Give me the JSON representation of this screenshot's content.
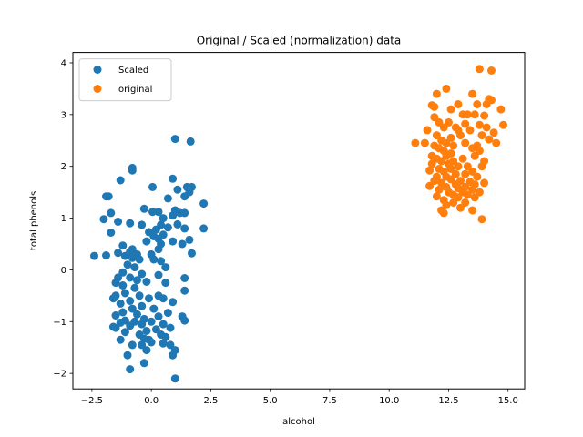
{
  "chart_data": {
    "type": "scatter",
    "title": "Original / Scaled (normalization) data",
    "xlabel": "alcohol",
    "ylabel": "total phenols",
    "xlim": [
      -3.3,
      15.7
    ],
    "ylim": [
      -2.3,
      4.2
    ],
    "xticks": [
      -2.5,
      0.0,
      2.5,
      5.0,
      7.5,
      10.0,
      12.5,
      15.0
    ],
    "xtick_labels": [
      "−2.5",
      "0.0",
      "2.5",
      "5.0",
      "7.5",
      "10.0",
      "12.5",
      "15.0"
    ],
    "yticks": [
      -2,
      -1,
      0,
      1,
      2,
      3,
      4
    ],
    "ytick_labels": [
      "−2",
      "−1",
      "0",
      "1",
      "2",
      "3",
      "4"
    ],
    "grid": false,
    "legend_position": "top-left",
    "series": [
      {
        "name": "Scaled",
        "color": "#1f77b4",
        "points": [
          [
            1.0,
            2.53
          ],
          [
            1.65,
            2.48
          ],
          [
            -0.8,
            1.97
          ],
          [
            -0.8,
            1.92
          ],
          [
            0.9,
            1.76
          ],
          [
            -1.3,
            1.73
          ],
          [
            1.5,
            1.6
          ],
          [
            1.7,
            1.6
          ],
          [
            0.05,
            1.6
          ],
          [
            1.6,
            1.5
          ],
          [
            1.1,
            1.55
          ],
          [
            1.4,
            1.42
          ],
          [
            -1.9,
            1.42
          ],
          [
            -1.8,
            1.42
          ],
          [
            0.7,
            1.38
          ],
          [
            2.2,
            1.28
          ],
          [
            -0.3,
            1.18
          ],
          [
            1.0,
            1.15
          ],
          [
            0.3,
            1.12
          ],
          [
            0.05,
            1.12
          ],
          [
            -1.7,
            1.1
          ],
          [
            1.2,
            1.1
          ],
          [
            1.4,
            1.1
          ],
          [
            0.5,
            1.0
          ],
          [
            0.9,
            1.05
          ],
          [
            -2.0,
            0.98
          ],
          [
            -1.4,
            0.93
          ],
          [
            -0.9,
            0.9
          ],
          [
            -0.4,
            0.87
          ],
          [
            0.4,
            0.87
          ],
          [
            1.1,
            0.88
          ],
          [
            0.7,
            0.82
          ],
          [
            2.2,
            0.8
          ],
          [
            1.4,
            0.8
          ],
          [
            0.2,
            0.78
          ],
          [
            -0.1,
            0.73
          ],
          [
            -1.7,
            0.72
          ],
          [
            0.5,
            0.68
          ],
          [
            0.1,
            0.65
          ],
          [
            0.3,
            0.6
          ],
          [
            1.6,
            0.58
          ],
          [
            0.9,
            0.55
          ],
          [
            -0.2,
            0.55
          ],
          [
            0.4,
            0.5
          ],
          [
            1.3,
            0.5
          ],
          [
            -1.2,
            0.47
          ],
          [
            -0.8,
            0.4
          ],
          [
            0.3,
            0.4
          ],
          [
            -0.9,
            0.35
          ],
          [
            -1.4,
            0.33
          ],
          [
            0.0,
            0.3
          ],
          [
            1.7,
            0.32
          ],
          [
            -0.6,
            0.3
          ],
          [
            -1.1,
            0.27
          ],
          [
            -2.4,
            0.27
          ],
          [
            -1.9,
            0.28
          ],
          [
            0.1,
            0.2
          ],
          [
            -0.8,
            0.23
          ],
          [
            -0.5,
            0.2
          ],
          [
            0.4,
            0.17
          ],
          [
            -1.0,
            0.1
          ],
          [
            0.6,
            0.05
          ],
          [
            -0.7,
            0.05
          ],
          [
            -1.2,
            -0.05
          ],
          [
            -0.4,
            -0.08
          ],
          [
            0.3,
            -0.1
          ],
          [
            -0.9,
            -0.15
          ],
          [
            -1.4,
            -0.15
          ],
          [
            -0.6,
            -0.2
          ],
          [
            1.4,
            -0.16
          ],
          [
            -1.5,
            -0.25
          ],
          [
            -0.2,
            -0.23
          ],
          [
            0.6,
            -0.25
          ],
          [
            -1.2,
            -0.3
          ],
          [
            -0.7,
            -0.35
          ],
          [
            1.4,
            -0.4
          ],
          [
            -1.1,
            -0.45
          ],
          [
            -0.5,
            -0.5
          ],
          [
            -1.5,
            -0.5
          ],
          [
            -1.6,
            -0.55
          ],
          [
            0.3,
            -0.5
          ],
          [
            0.5,
            -0.55
          ],
          [
            -0.1,
            -0.55
          ],
          [
            -0.9,
            -0.6
          ],
          [
            -1.3,
            -0.65
          ],
          [
            0.9,
            -0.62
          ],
          [
            -0.4,
            -0.7
          ],
          [
            -0.8,
            -0.75
          ],
          [
            0.1,
            -0.75
          ],
          [
            -1.2,
            -0.82
          ],
          [
            0.7,
            -0.83
          ],
          [
            -0.6,
            -0.86
          ],
          [
            -1.5,
            -0.88
          ],
          [
            1.3,
            -0.9
          ],
          [
            0.3,
            -0.9
          ],
          [
            -0.3,
            -0.95
          ],
          [
            -1.1,
            -0.98
          ],
          [
            -0.7,
            -1.0
          ],
          [
            0.0,
            -1.0
          ],
          [
            1.4,
            -0.98
          ],
          [
            -1.3,
            -1.02
          ],
          [
            -0.4,
            -1.05
          ],
          [
            0.5,
            -1.05
          ],
          [
            -0.9,
            -1.08
          ],
          [
            -1.6,
            -1.1
          ],
          [
            -1.5,
            -1.12
          ],
          [
            0.8,
            -1.12
          ],
          [
            0.2,
            -1.15
          ],
          [
            -0.2,
            -1.18
          ],
          [
            -1.1,
            -1.2
          ],
          [
            -0.5,
            -1.25
          ],
          [
            0.4,
            -1.25
          ],
          [
            -0.3,
            -1.33
          ],
          [
            -0.1,
            -1.35
          ],
          [
            0.6,
            -1.3
          ],
          [
            -1.3,
            -1.35
          ],
          [
            0.0,
            -1.4
          ],
          [
            -0.4,
            -1.45
          ],
          [
            0.5,
            -1.42
          ],
          [
            -0.8,
            -1.45
          ],
          [
            0.8,
            -1.45
          ],
          [
            -0.2,
            -1.55
          ],
          [
            1.0,
            -1.55
          ],
          [
            -1.0,
            -1.65
          ],
          [
            0.9,
            -1.65
          ],
          [
            -0.3,
            -1.8
          ],
          [
            -0.9,
            -1.92
          ],
          [
            1.0,
            -2.1
          ]
        ]
      },
      {
        "name": "original",
        "color": "#ff7f0e",
        "points": [
          [
            13.8,
            3.88
          ],
          [
            14.3,
            3.85
          ],
          [
            12.4,
            3.5
          ],
          [
            12.0,
            3.4
          ],
          [
            13.5,
            3.4
          ],
          [
            14.2,
            3.3
          ],
          [
            14.3,
            3.28
          ],
          [
            14.1,
            3.2
          ],
          [
            12.9,
            3.2
          ],
          [
            13.7,
            3.2
          ],
          [
            11.8,
            3.18
          ],
          [
            11.9,
            3.15
          ],
          [
            14.7,
            3.1
          ],
          [
            12.6,
            3.1
          ],
          [
            13.3,
            3.0
          ],
          [
            13.6,
            3.0
          ],
          [
            13.1,
            3.0
          ],
          [
            14.0,
            2.98
          ],
          [
            11.9,
            2.95
          ],
          [
            12.1,
            2.85
          ],
          [
            12.5,
            2.85
          ],
          [
            13.2,
            2.82
          ],
          [
            13.8,
            2.8
          ],
          [
            14.8,
            2.8
          ],
          [
            12.3,
            2.75
          ],
          [
            12.8,
            2.75
          ],
          [
            14.1,
            2.75
          ],
          [
            12.9,
            2.7
          ],
          [
            13.4,
            2.7
          ],
          [
            11.6,
            2.7
          ],
          [
            14.4,
            2.65
          ],
          [
            12.0,
            2.6
          ],
          [
            13.9,
            2.6
          ],
          [
            13.0,
            2.6
          ],
          [
            12.6,
            2.55
          ],
          [
            14.2,
            2.52
          ],
          [
            12.2,
            2.5
          ],
          [
            11.1,
            2.45
          ],
          [
            11.5,
            2.45
          ],
          [
            12.4,
            2.45
          ],
          [
            13.2,
            2.45
          ],
          [
            14.5,
            2.45
          ],
          [
            11.9,
            2.4
          ],
          [
            12.7,
            2.4
          ],
          [
            13.7,
            2.4
          ],
          [
            12.1,
            2.35
          ],
          [
            13.5,
            2.35
          ],
          [
            12.3,
            2.3
          ],
          [
            13.8,
            2.3
          ],
          [
            12.6,
            2.25
          ],
          [
            11.8,
            2.2
          ],
          [
            12.4,
            2.2
          ],
          [
            13.6,
            2.2
          ],
          [
            12.0,
            2.15
          ],
          [
            13.1,
            2.15
          ],
          [
            12.7,
            2.1
          ],
          [
            12.2,
            2.1
          ],
          [
            14.0,
            2.1
          ],
          [
            11.8,
            2.05
          ],
          [
            12.5,
            2.05
          ],
          [
            13.3,
            2.0
          ],
          [
            12.9,
            2.0
          ],
          [
            13.9,
            2.0
          ],
          [
            12.1,
            1.95
          ],
          [
            12.6,
            1.95
          ],
          [
            11.7,
            1.92
          ],
          [
            12.3,
            1.9
          ],
          [
            13.5,
            1.9
          ],
          [
            13.2,
            1.85
          ],
          [
            12.8,
            1.85
          ],
          [
            12.0,
            1.8
          ],
          [
            12.4,
            1.8
          ],
          [
            13.7,
            1.8
          ],
          [
            12.6,
            1.75
          ],
          [
            11.9,
            1.72
          ],
          [
            13.0,
            1.72
          ],
          [
            13.4,
            1.7
          ],
          [
            12.2,
            1.68
          ],
          [
            14.0,
            1.68
          ],
          [
            12.8,
            1.65
          ],
          [
            13.6,
            1.65
          ],
          [
            11.7,
            1.62
          ],
          [
            12.4,
            1.6
          ],
          [
            13.2,
            1.6
          ],
          [
            12.9,
            1.58
          ],
          [
            13.5,
            1.55
          ],
          [
            12.1,
            1.55
          ],
          [
            13.1,
            1.5
          ],
          [
            12.5,
            1.5
          ],
          [
            13.8,
            1.5
          ],
          [
            12.7,
            1.45
          ],
          [
            13.3,
            1.45
          ],
          [
            12.0,
            1.42
          ],
          [
            12.9,
            1.4
          ],
          [
            13.6,
            1.4
          ],
          [
            12.3,
            1.35
          ],
          [
            12.7,
            1.3
          ],
          [
            13.2,
            1.3
          ],
          [
            12.4,
            1.25
          ],
          [
            13.0,
            1.2
          ],
          [
            12.2,
            1.15
          ],
          [
            13.5,
            1.15
          ],
          [
            12.3,
            1.1
          ],
          [
            13.9,
            0.98
          ]
        ]
      }
    ]
  }
}
